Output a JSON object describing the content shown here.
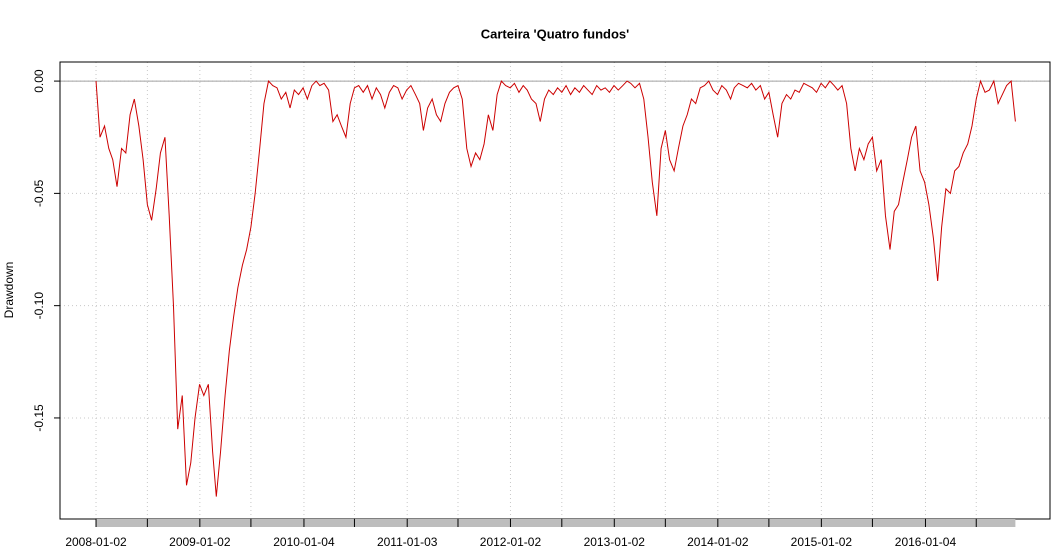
{
  "chart_data": {
    "type": "line",
    "title": "Carteira 'Quatro fundos'",
    "y_label": "Drawdown",
    "color": "#cc0000",
    "grid": true,
    "xlim": [
      "2007-08-28",
      "2017-03-18"
    ],
    "ylim": [
      -0.195,
      0.0085
    ],
    "xticks": [
      "2008-01-02",
      "2009-01-02",
      "2010-01-04",
      "2011-01-03",
      "2012-01-02",
      "2013-01-02",
      "2014-01-02",
      "2015-01-02",
      "2016-01-04"
    ],
    "xminorticks": [
      "2008-07-01",
      "2009-07-01",
      "2010-07-01",
      "2011-07-01",
      "2012-07-01",
      "2013-07-01",
      "2014-07-01",
      "2015-07-01",
      "2016-07-01"
    ],
    "yticks": [
      -0.15,
      {
        "value": -0.1,
        "label": "-0.10"
      },
      -0.05,
      {
        "value": 0,
        "label": "0.00"
      }
    ],
    "x": [
      "2008-01-02",
      "2008-01-16",
      "2008-02-01",
      "2008-02-16",
      "2008-03-01",
      "2008-03-16",
      "2008-04-01",
      "2008-04-16",
      "2008-05-01",
      "2008-05-16",
      "2008-06-01",
      "2008-06-16",
      "2008-07-01",
      "2008-07-16",
      "2008-08-01",
      "2008-08-16",
      "2008-09-01",
      "2008-09-16",
      "2008-10-01",
      "2008-10-16",
      "2008-11-01",
      "2008-11-16",
      "2008-12-01",
      "2008-12-16",
      "2009-01-01",
      "2009-01-16",
      "2009-02-01",
      "2009-02-16",
      "2009-03-01",
      "2009-03-16",
      "2009-04-01",
      "2009-04-16",
      "2009-05-01",
      "2009-05-16",
      "2009-06-01",
      "2009-06-16",
      "2009-07-01",
      "2009-07-16",
      "2009-08-01",
      "2009-08-16",
      "2009-09-01",
      "2009-09-16",
      "2009-10-01",
      "2009-10-16",
      "2009-11-01",
      "2009-11-16",
      "2009-12-01",
      "2009-12-16",
      "2010-01-01",
      "2010-01-16",
      "2010-02-01",
      "2010-02-16",
      "2010-03-01",
      "2010-03-16",
      "2010-04-01",
      "2010-04-16",
      "2010-05-01",
      "2010-05-16",
      "2010-06-01",
      "2010-06-16",
      "2010-07-01",
      "2010-07-16",
      "2010-08-01",
      "2010-08-16",
      "2010-09-01",
      "2010-09-16",
      "2010-10-01",
      "2010-10-16",
      "2010-11-01",
      "2010-11-16",
      "2010-12-01",
      "2010-12-16",
      "2011-01-01",
      "2011-01-16",
      "2011-02-01",
      "2011-02-16",
      "2011-03-01",
      "2011-03-16",
      "2011-04-01",
      "2011-04-16",
      "2011-05-01",
      "2011-05-16",
      "2011-06-01",
      "2011-06-16",
      "2011-07-01",
      "2011-07-16",
      "2011-08-01",
      "2011-08-16",
      "2011-09-01",
      "2011-09-16",
      "2011-10-01",
      "2011-10-16",
      "2011-11-01",
      "2011-11-16",
      "2011-12-01",
      "2011-12-16",
      "2012-01-01",
      "2012-01-16",
      "2012-02-01",
      "2012-02-16",
      "2012-03-01",
      "2012-03-16",
      "2012-04-01",
      "2012-04-16",
      "2012-05-01",
      "2012-05-16",
      "2012-06-01",
      "2012-06-16",
      "2012-07-01",
      "2012-07-16",
      "2012-08-01",
      "2012-08-16",
      "2012-09-01",
      "2012-09-16",
      "2012-10-01",
      "2012-10-16",
      "2012-11-01",
      "2012-11-16",
      "2012-12-01",
      "2012-12-16",
      "2013-01-01",
      "2013-01-16",
      "2013-02-01",
      "2013-02-16",
      "2013-03-01",
      "2013-03-16",
      "2013-04-01",
      "2013-04-16",
      "2013-05-01",
      "2013-05-16",
      "2013-06-01",
      "2013-06-16",
      "2013-07-01",
      "2013-07-16",
      "2013-08-01",
      "2013-08-16",
      "2013-09-01",
      "2013-09-16",
      "2013-10-01",
      "2013-10-16",
      "2013-11-01",
      "2013-11-16",
      "2013-12-01",
      "2013-12-16",
      "2014-01-01",
      "2014-01-16",
      "2014-02-01",
      "2014-02-16",
      "2014-03-01",
      "2014-03-16",
      "2014-04-01",
      "2014-04-16",
      "2014-05-01",
      "2014-05-16",
      "2014-06-01",
      "2014-06-16",
      "2014-07-01",
      "2014-07-16",
      "2014-08-01",
      "2014-08-16",
      "2014-09-01",
      "2014-09-16",
      "2014-10-01",
      "2014-10-16",
      "2014-11-01",
      "2014-11-16",
      "2014-12-01",
      "2014-12-16",
      "2015-01-01",
      "2015-01-16",
      "2015-02-01",
      "2015-02-16",
      "2015-03-01",
      "2015-03-16",
      "2015-04-01",
      "2015-04-16",
      "2015-05-01",
      "2015-05-16",
      "2015-06-01",
      "2015-06-16",
      "2015-07-01",
      "2015-07-16",
      "2015-08-01",
      "2015-08-16",
      "2015-09-01",
      "2015-09-16",
      "2015-10-01",
      "2015-10-16",
      "2015-11-01",
      "2015-11-16",
      "2015-12-01",
      "2015-12-16",
      "2016-01-01",
      "2016-01-16",
      "2016-02-01",
      "2016-02-16",
      "2016-03-01",
      "2016-03-16",
      "2016-04-01",
      "2016-04-16",
      "2016-05-01",
      "2016-05-16",
      "2016-06-01",
      "2016-06-16",
      "2016-07-01",
      "2016-07-16",
      "2016-08-01",
      "2016-08-16",
      "2016-09-01",
      "2016-09-16",
      "2016-10-01",
      "2016-10-16",
      "2016-11-01",
      "2016-11-16"
    ],
    "values": [
      0,
      -0.025,
      -0.02,
      -0.03,
      -0.035,
      -0.047,
      -0.03,
      -0.032,
      -0.015,
      -0.008,
      -0.02,
      -0.035,
      -0.055,
      -0.062,
      -0.048,
      -0.032,
      -0.025,
      -0.06,
      -0.1,
      -0.155,
      -0.14,
      -0.18,
      -0.17,
      -0.15,
      -0.135,
      -0.14,
      -0.135,
      -0.165,
      -0.185,
      -0.165,
      -0.14,
      -0.12,
      -0.105,
      -0.092,
      -0.082,
      -0.075,
      -0.065,
      -0.05,
      -0.03,
      -0.01,
      0,
      -0.002,
      -0.003,
      -0.008,
      -0.005,
      -0.012,
      -0.004,
      -0.006,
      -0.003,
      -0.008,
      -0.002,
      0,
      -0.002,
      -0.001,
      -0.004,
      -0.018,
      -0.015,
      -0.02,
      -0.025,
      -0.01,
      -0.003,
      -0.002,
      -0.005,
      -0.002,
      -0.008,
      -0.003,
      -0.006,
      -0.012,
      -0.005,
      -0.002,
      -0.003,
      -0.008,
      -0.004,
      -0.002,
      -0.006,
      -0.01,
      -0.022,
      -0.012,
      -0.008,
      -0.015,
      -0.018,
      -0.01,
      -0.005,
      -0.003,
      -0.002,
      -0.008,
      -0.03,
      -0.038,
      -0.032,
      -0.035,
      -0.028,
      -0.015,
      -0.022,
      -0.006,
      0,
      -0.002,
      -0.003,
      -0.001,
      -0.005,
      -0.002,
      -0.004,
      -0.008,
      -0.01,
      -0.018,
      -0.008,
      -0.004,
      -0.006,
      -0.003,
      -0.005,
      -0.002,
      -0.006,
      -0.003,
      -0.005,
      -0.002,
      -0.004,
      -0.006,
      -0.002,
      -0.004,
      -0.003,
      -0.005,
      -0.002,
      -0.004,
      -0.002,
      0,
      -0.001,
      -0.003,
      -0.001,
      -0.008,
      -0.025,
      -0.045,
      -0.06,
      -0.03,
      -0.022,
      -0.035,
      -0.04,
      -0.03,
      -0.02,
      -0.015,
      -0.008,
      -0.01,
      -0.003,
      -0.002,
      0,
      -0.004,
      -0.006,
      -0.002,
      -0.004,
      -0.008,
      -0.003,
      -0.001,
      -0.002,
      -0.003,
      -0.001,
      -0.004,
      -0.002,
      -0.008,
      -0.005,
      -0.015,
      -0.025,
      -0.01,
      -0.006,
      -0.008,
      -0.004,
      -0.005,
      -0.001,
      -0.002,
      -0.003,
      -0.005,
      -0.001,
      -0.003,
      0,
      -0.002,
      -0.004,
      -0.002,
      -0.01,
      -0.03,
      -0.04,
      -0.03,
      -0.035,
      -0.028,
      -0.025,
      -0.04,
      -0.035,
      -0.06,
      -0.075,
      -0.058,
      -0.055,
      -0.045,
      -0.035,
      -0.025,
      -0.02,
      -0.04,
      -0.045,
      -0.055,
      -0.07,
      -0.089,
      -0.065,
      -0.048,
      -0.05,
      -0.04,
      -0.038,
      -0.032,
      -0.028,
      -0.02,
      -0.008,
      0,
      -0.005,
      -0.004,
      0,
      -0.01,
      -0.006,
      -0.002,
      0,
      -0.018
    ]
  }
}
